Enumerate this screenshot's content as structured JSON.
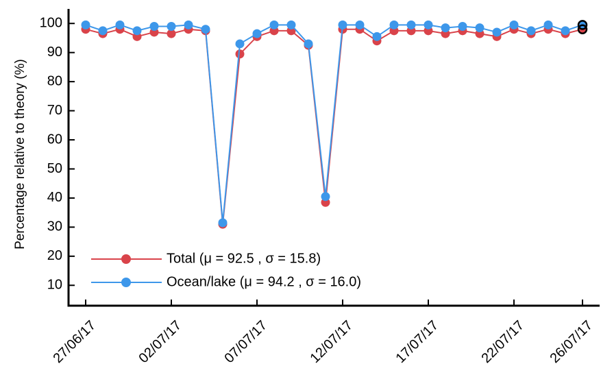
{
  "chart_data": {
    "type": "line",
    "title": "",
    "xlabel": "",
    "ylabel": "Percentage relative to theory (%)",
    "ylim": [
      3,
      105
    ],
    "yticks": [
      10,
      20,
      30,
      40,
      50,
      60,
      70,
      80,
      90,
      100
    ],
    "x_tick_labels": [
      {
        "day": 0,
        "label": "27/06/17"
      },
      {
        "day": 5,
        "label": "02/07/17"
      },
      {
        "day": 10,
        "label": "07/07/17"
      },
      {
        "day": 15,
        "label": "12/07/17"
      },
      {
        "day": 20,
        "label": "17/07/17"
      },
      {
        "day": 25,
        "label": "22/07/17"
      },
      {
        "day": 29,
        "label": "26/07/17"
      }
    ],
    "xlim": [
      -1,
      30
    ],
    "grid": false,
    "legend_position": "bottom-left",
    "x": [
      0,
      1,
      2,
      3,
      4,
      5,
      6,
      7,
      8,
      9,
      10,
      11,
      12,
      13,
      14,
      15,
      16,
      17,
      18,
      19,
      20,
      21,
      22,
      23,
      24,
      25,
      26,
      27,
      28,
      29
    ],
    "series": [
      {
        "name": "Total (μ = 92.5 , σ = 15.8)",
        "color": "#d9434a",
        "values": [
          98,
          96.5,
          98,
          95.5,
          97,
          96.5,
          98,
          97.5,
          31,
          89.5,
          95.5,
          97.5,
          97.5,
          92.5,
          38.5,
          98,
          98,
          94,
          97.5,
          97.5,
          97.5,
          96.5,
          97.5,
          96.5,
          95.5,
          98,
          96.5,
          98,
          96.5,
          98
        ]
      },
      {
        "name": "Ocean/lake (μ = 94.2 , σ = 16.0)",
        "color": "#3d97ea",
        "values": [
          99.5,
          97.5,
          99.5,
          97.5,
          99,
          99,
          99.5,
          98,
          31.5,
          93,
          96.5,
          99.5,
          99.5,
          93,
          40.5,
          99.5,
          99.5,
          95.5,
          99.5,
          99.5,
          99.5,
          98.5,
          99,
          98.5,
          97,
          99.5,
          97.5,
          99.5,
          97.5,
          99.5
        ]
      }
    ]
  }
}
